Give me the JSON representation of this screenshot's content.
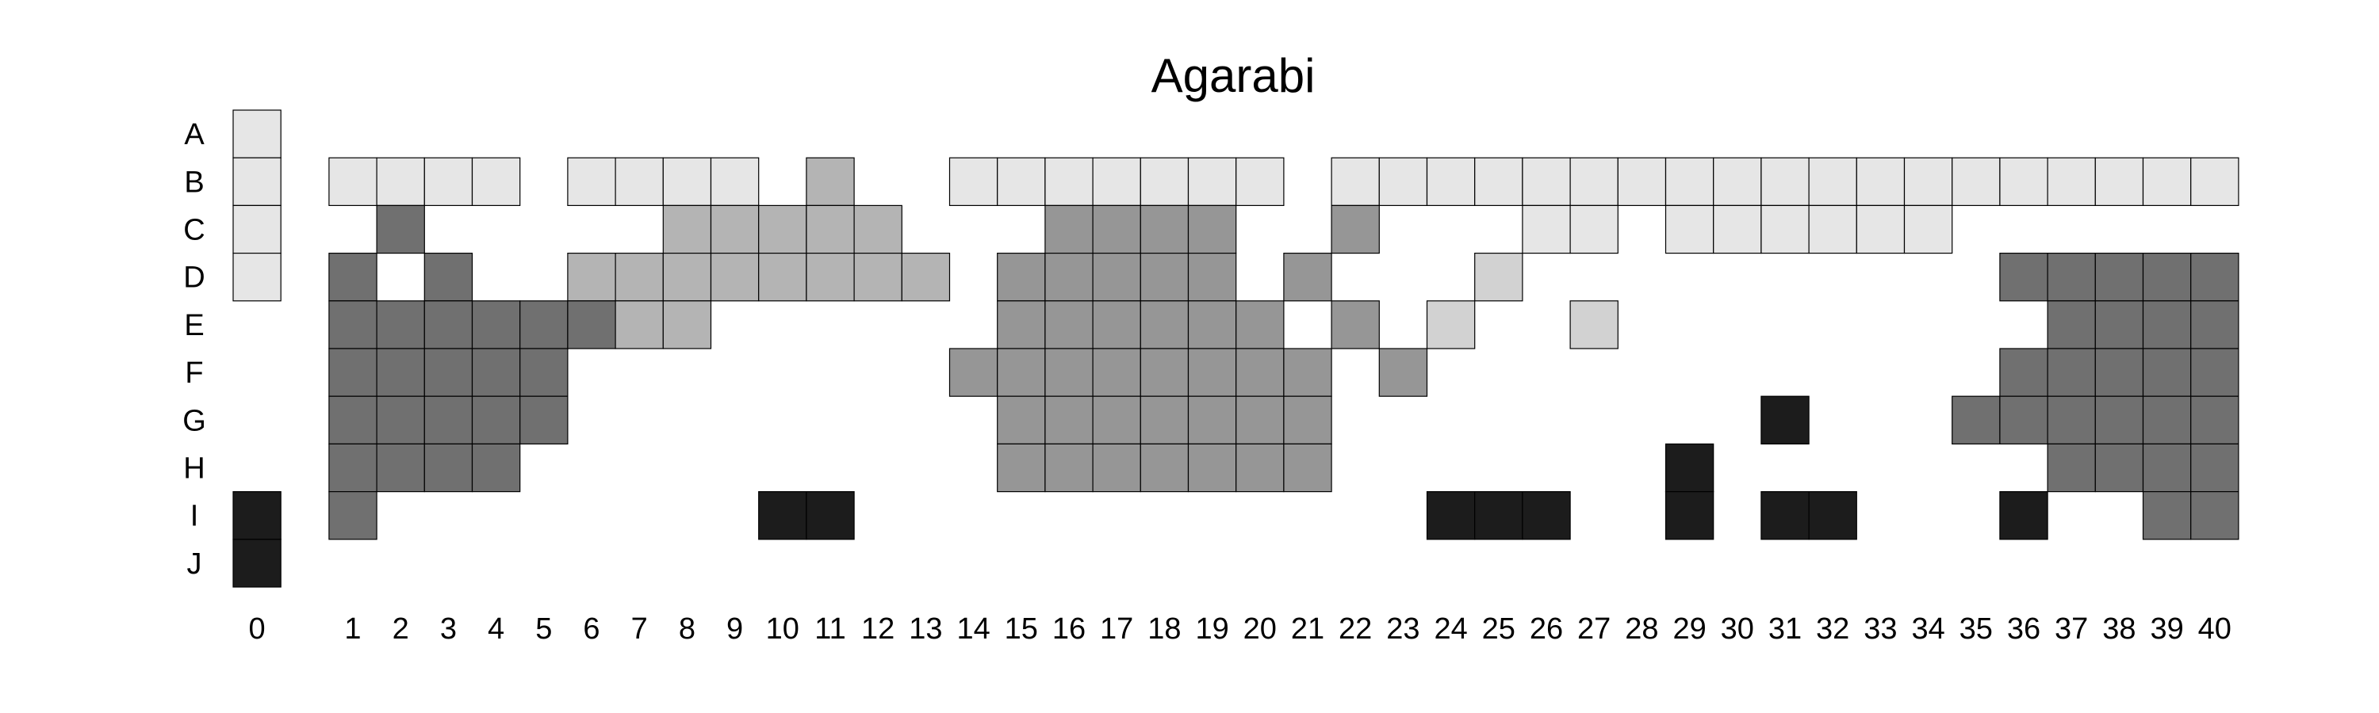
{
  "chart_data": {
    "type": "heatmap",
    "title": "Agarabi",
    "rows": [
      "A",
      "B",
      "C",
      "D",
      "E",
      "F",
      "G",
      "H",
      "I",
      "J"
    ],
    "columns": [
      0,
      1,
      2,
      3,
      4,
      5,
      6,
      7,
      8,
      9,
      10,
      11,
      12,
      13,
      14,
      15,
      16,
      17,
      18,
      19,
      20,
      21,
      22,
      23,
      24,
      25,
      26,
      27,
      28,
      29,
      30,
      31,
      32,
      33,
      34,
      35,
      36,
      37,
      38,
      39,
      40
    ],
    "levels": {
      "1": "#e6e6e6",
      "2": "#d2d2d2",
      "3": "#b4b4b4",
      "4": "#969696",
      "5": "#707070",
      "6": "#1c1c1c"
    },
    "cells": {
      "A": [
        [
          0,
          1
        ]
      ],
      "B": [
        [
          0,
          1
        ],
        [
          1,
          1
        ],
        [
          2,
          1
        ],
        [
          3,
          1
        ],
        [
          4,
          1
        ],
        [
          6,
          1
        ],
        [
          7,
          1
        ],
        [
          8,
          1
        ],
        [
          9,
          1
        ],
        [
          11,
          3
        ],
        [
          14,
          1
        ],
        [
          15,
          1
        ],
        [
          16,
          1
        ],
        [
          17,
          1
        ],
        [
          18,
          1
        ],
        [
          19,
          1
        ],
        [
          20,
          1
        ],
        [
          22,
          1
        ],
        [
          23,
          1
        ],
        [
          24,
          1
        ],
        [
          25,
          1
        ],
        [
          26,
          1
        ],
        [
          27,
          1
        ],
        [
          28,
          1
        ],
        [
          29,
          1
        ],
        [
          30,
          1
        ],
        [
          31,
          1
        ],
        [
          32,
          1
        ],
        [
          33,
          1
        ],
        [
          34,
          1
        ],
        [
          35,
          1
        ],
        [
          36,
          1
        ],
        [
          37,
          1
        ],
        [
          38,
          1
        ],
        [
          39,
          1
        ],
        [
          40,
          1
        ]
      ],
      "C": [
        [
          0,
          1
        ],
        [
          2,
          5
        ],
        [
          8,
          3
        ],
        [
          9,
          3
        ],
        [
          10,
          3
        ],
        [
          11,
          3
        ],
        [
          12,
          3
        ],
        [
          16,
          4
        ],
        [
          17,
          4
        ],
        [
          18,
          4
        ],
        [
          19,
          4
        ],
        [
          22,
          4
        ],
        [
          26,
          1
        ],
        [
          27,
          1
        ],
        [
          29,
          1
        ],
        [
          30,
          1
        ],
        [
          31,
          1
        ],
        [
          32,
          1
        ],
        [
          33,
          1
        ],
        [
          34,
          1
        ]
      ],
      "D": [
        [
          0,
          1
        ],
        [
          1,
          5
        ],
        [
          3,
          5
        ],
        [
          6,
          3
        ],
        [
          7,
          3
        ],
        [
          8,
          3
        ],
        [
          9,
          3
        ],
        [
          10,
          3
        ],
        [
          11,
          3
        ],
        [
          12,
          3
        ],
        [
          13,
          3
        ],
        [
          15,
          4
        ],
        [
          16,
          4
        ],
        [
          17,
          4
        ],
        [
          18,
          4
        ],
        [
          19,
          4
        ],
        [
          21,
          4
        ],
        [
          25,
          2
        ],
        [
          36,
          5
        ],
        [
          37,
          5
        ],
        [
          38,
          5
        ],
        [
          39,
          5
        ],
        [
          40,
          5
        ]
      ],
      "E": [
        [
          1,
          5
        ],
        [
          2,
          5
        ],
        [
          3,
          5
        ],
        [
          4,
          5
        ],
        [
          5,
          5
        ],
        [
          6,
          5
        ],
        [
          7,
          3
        ],
        [
          8,
          3
        ],
        [
          15,
          4
        ],
        [
          16,
          4
        ],
        [
          17,
          4
        ],
        [
          18,
          4
        ],
        [
          19,
          4
        ],
        [
          20,
          4
        ],
        [
          22,
          4
        ],
        [
          24,
          2
        ],
        [
          27,
          2
        ],
        [
          37,
          5
        ],
        [
          38,
          5
        ],
        [
          39,
          5
        ],
        [
          40,
          5
        ]
      ],
      "F": [
        [
          1,
          5
        ],
        [
          2,
          5
        ],
        [
          3,
          5
        ],
        [
          4,
          5
        ],
        [
          5,
          5
        ],
        [
          14,
          4
        ],
        [
          15,
          4
        ],
        [
          16,
          4
        ],
        [
          17,
          4
        ],
        [
          18,
          4
        ],
        [
          19,
          4
        ],
        [
          20,
          4
        ],
        [
          21,
          4
        ],
        [
          23,
          4
        ],
        [
          36,
          5
        ],
        [
          37,
          5
        ],
        [
          38,
          5
        ],
        [
          39,
          5
        ],
        [
          40,
          5
        ]
      ],
      "G": [
        [
          1,
          5
        ],
        [
          2,
          5
        ],
        [
          3,
          5
        ],
        [
          4,
          5
        ],
        [
          5,
          5
        ],
        [
          15,
          4
        ],
        [
          16,
          4
        ],
        [
          17,
          4
        ],
        [
          18,
          4
        ],
        [
          19,
          4
        ],
        [
          20,
          4
        ],
        [
          21,
          4
        ],
        [
          31,
          6
        ],
        [
          35,
          5
        ],
        [
          36,
          5
        ],
        [
          37,
          5
        ],
        [
          38,
          5
        ],
        [
          39,
          5
        ],
        [
          40,
          5
        ]
      ],
      "H": [
        [
          1,
          5
        ],
        [
          2,
          5
        ],
        [
          3,
          5
        ],
        [
          4,
          5
        ],
        [
          15,
          4
        ],
        [
          16,
          4
        ],
        [
          17,
          4
        ],
        [
          18,
          4
        ],
        [
          19,
          4
        ],
        [
          20,
          4
        ],
        [
          21,
          4
        ],
        [
          29,
          6
        ],
        [
          37,
          5
        ],
        [
          38,
          5
        ],
        [
          39,
          5
        ],
        [
          40,
          5
        ]
      ],
      "I": [
        [
          0,
          6
        ],
        [
          1,
          5
        ],
        [
          10,
          6
        ],
        [
          11,
          6
        ],
        [
          24,
          6
        ],
        [
          25,
          6
        ],
        [
          26,
          6
        ],
        [
          29,
          6
        ],
        [
          31,
          6
        ],
        [
          32,
          6
        ],
        [
          36,
          6
        ],
        [
          39,
          5
        ],
        [
          40,
          5
        ]
      ],
      "J": [
        [
          0,
          6
        ]
      ]
    }
  }
}
